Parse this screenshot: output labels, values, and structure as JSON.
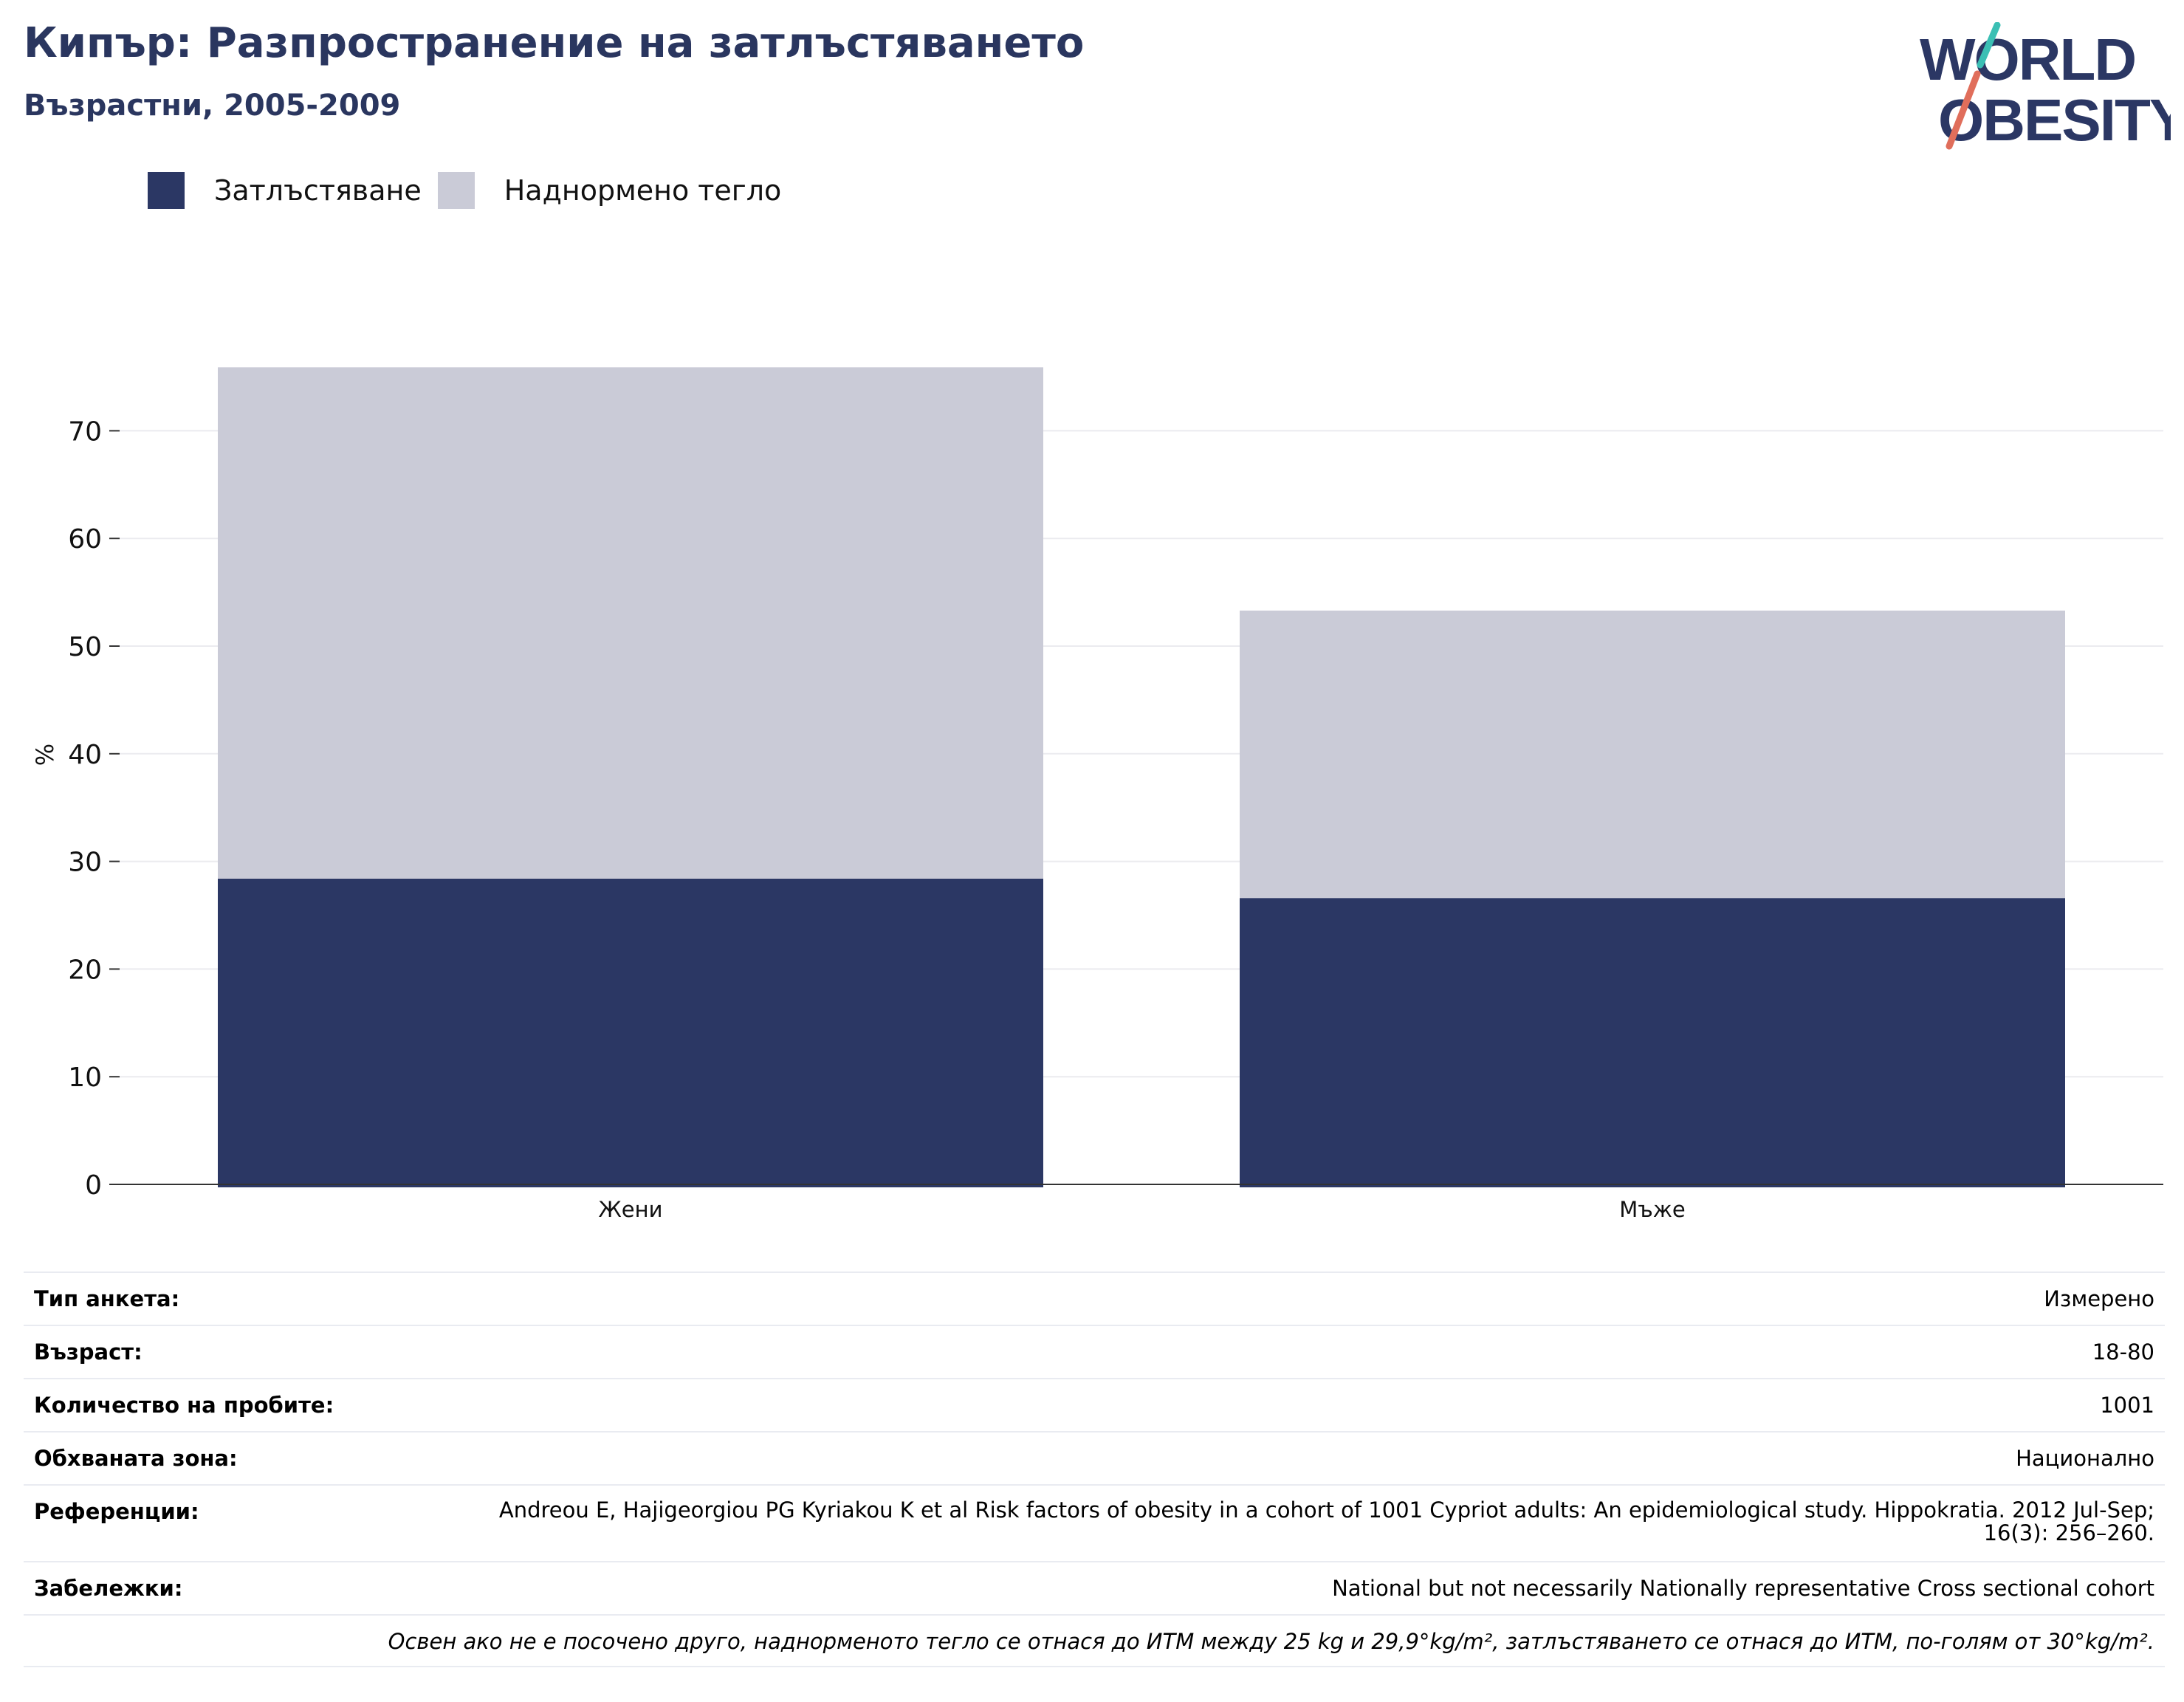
{
  "header": {
    "title": "Кипър: Разпространение на затлъстяването",
    "subtitle": "Възрастни, 2005-2009"
  },
  "logo": {
    "line1": "WORLD",
    "line2": "OBESITY"
  },
  "colors": {
    "obesity": "#2b3764",
    "overweight": "#cacbd7",
    "brand_teal": "#3bbfb4",
    "brand_coral": "#e06e5b"
  },
  "chart_data": {
    "type": "bar",
    "stacked": true,
    "categories": [
      "Жени",
      "Мъже"
    ],
    "series": [
      {
        "name": "Затлъстяване",
        "values": [
          28.4,
          26.6
        ]
      },
      {
        "name": "Наднормено тегло",
        "values": [
          47.5,
          26.7
        ]
      }
    ],
    "ylabel": "%",
    "ylim": [
      0,
      80
    ],
    "yticks": [
      0,
      10,
      20,
      30,
      40,
      50,
      60,
      70
    ],
    "grid": true,
    "legend_position": "top-left"
  },
  "details": {
    "survey_type": {
      "label": "Тип анкета:",
      "value": "Измерено"
    },
    "age": {
      "label": "Възраст:",
      "value": "18-80"
    },
    "sample_size": {
      "label": "Количество на пробите:",
      "value": "1001"
    },
    "coverage": {
      "label": "Обхваната зона:",
      "value": "Национално"
    },
    "references": {
      "label": "Референции:",
      "value": "Andreou E, Hajigeorgiou PG Kyriakou K et al Risk factors of obesity in a cohort of 1001 Cypriot adults: An epidemiological study. Hippokratia. 2012 Jul-Sep; 16(3): 256–260."
    },
    "notes": {
      "label": "Забележки:",
      "value": "National but not necessarily Nationally representative Cross sectional cohort"
    },
    "footnote": "Освен ако не е посочено друго, наднорменото тегло се отнася до ИТМ между 25 kg и 29,9°kg/m², затлъстяването се отнася до ИТМ, по-голям от 30°kg/m²."
  }
}
